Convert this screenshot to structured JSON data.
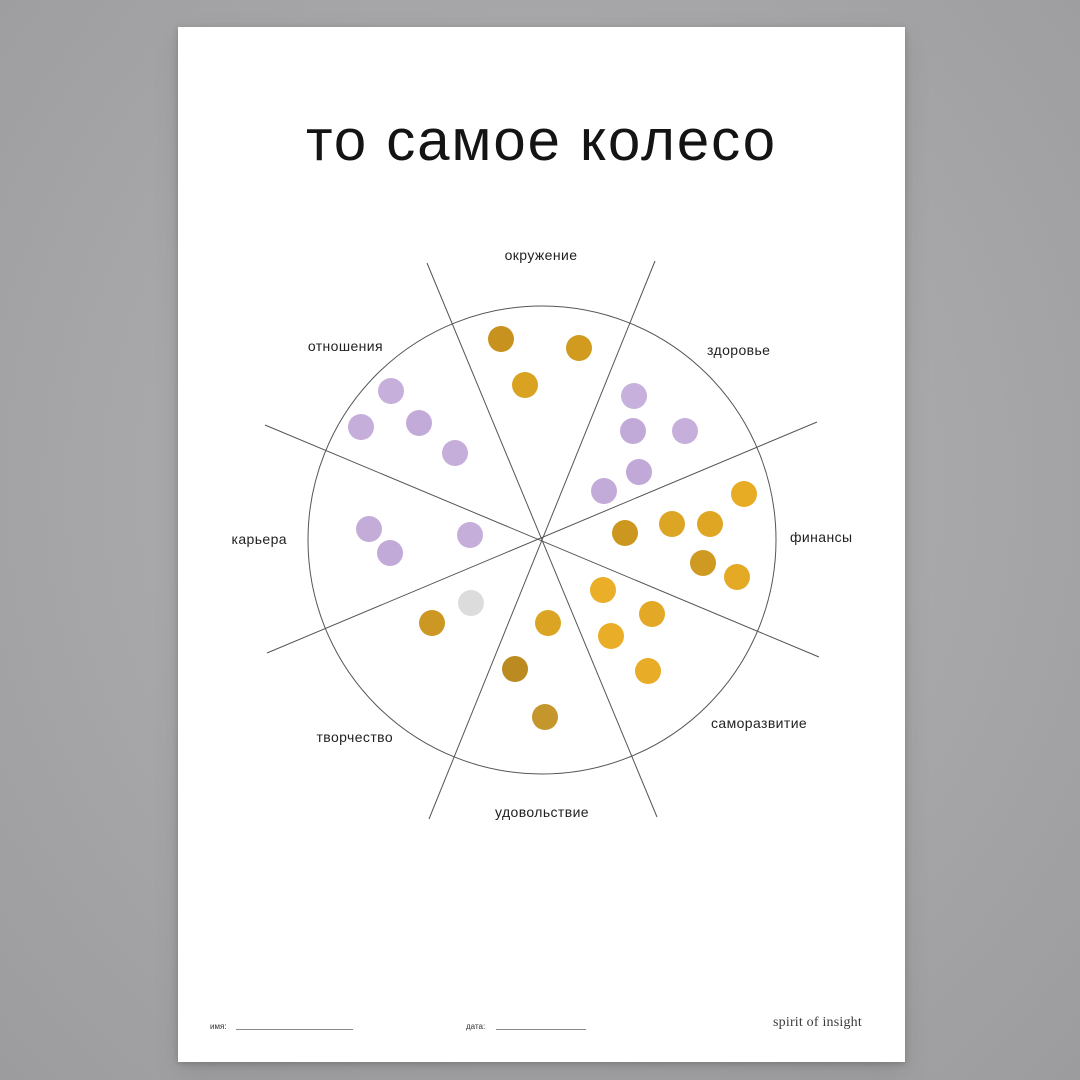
{
  "poster": {
    "title": "то самое колесо",
    "paper_color": "#ffffff",
    "background_color": "#a7a7a9"
  },
  "wheel": {
    "segments": [
      {
        "label": "окружение"
      },
      {
        "label": "здоровье"
      },
      {
        "label": "финансы"
      },
      {
        "label": "саморазвитие"
      },
      {
        "label": "удовольствие"
      },
      {
        "label": "творчество"
      },
      {
        "label": "карьера"
      },
      {
        "label": "отношения"
      }
    ],
    "sticker_colors": {
      "lavender": "#c4acd9",
      "gold": "#c9962a",
      "yellow": "#e8ad27",
      "silver": "#dadada"
    },
    "line_color": "#555555"
  },
  "footer": {
    "name_label": "имя:",
    "date_label": "дата:",
    "brand": "spirit of insight"
  }
}
